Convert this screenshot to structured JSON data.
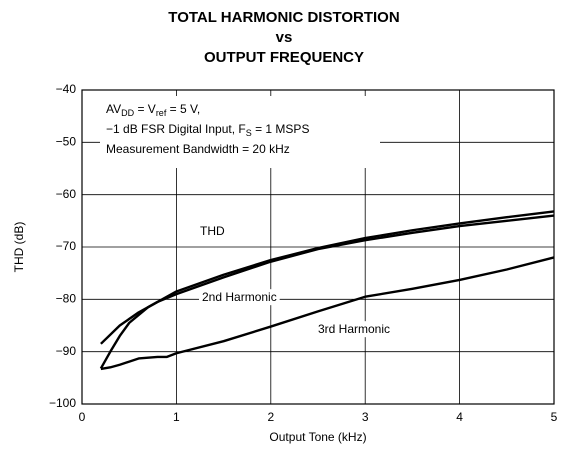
{
  "chart_data": {
    "type": "line",
    "title": [
      "TOTAL HARMONIC DISTORTION",
      "vs",
      "OUTPUT FREQUENCY"
    ],
    "x_label": "Output Tone (kHz)",
    "y_label": "THD (dB)",
    "annotation": [
      [
        "AV",
        "DD",
        " = V",
        "ref",
        " = 5 V,"
      ],
      [
        "−1 dB FSR Digital Input, F",
        "S",
        " = 1 MSPS"
      ],
      [
        "Measurement Bandwidth = 20 kHz"
      ]
    ],
    "xlim": [
      0,
      5
    ],
    "xticks": [
      0,
      1,
      2,
      3,
      4,
      5
    ],
    "ylim": [
      -100,
      -40
    ],
    "yticks": [
      {
        "value": -100,
        "label": "−100"
      },
      {
        "value": -90,
        "label": "−90"
      },
      {
        "value": -80,
        "label": "−80"
      },
      {
        "value": -70,
        "label": "−70"
      },
      {
        "value": -60,
        "label": "−60"
      },
      {
        "value": -50,
        "label": "−50"
      },
      {
        "value": -40,
        "label": "−40"
      }
    ],
    "grid": true,
    "series": [
      {
        "name": "THD",
        "color": "#000000",
        "x": [
          0.2,
          0.3,
          0.4,
          0.5,
          0.7,
          1,
          1.5,
          2,
          2.5,
          3,
          3.5,
          4,
          4.5,
          5
        ],
        "values": [
          -93.2,
          -90,
          -87,
          -84.5,
          -81.5,
          -78.5,
          -75.3,
          -72.5,
          -70.2,
          -68.3,
          -66.8,
          -65.5,
          -64.3,
          -63.2
        ]
      },
      {
        "name": "2nd Harmonic",
        "color": "#000000",
        "x": [
          0.2,
          0.4,
          0.6,
          0.8,
          1,
          1.5,
          2,
          2.5,
          3,
          3.5,
          4,
          4.5,
          5
        ],
        "values": [
          -88.5,
          -85,
          -82.5,
          -80.5,
          -79,
          -75.8,
          -72.8,
          -70.4,
          -68.7,
          -67.3,
          -66,
          -65,
          -64
        ]
      },
      {
        "name": "3rd Harmonic",
        "color": "#000000",
        "x": [
          0.2,
          0.3,
          0.4,
          0.6,
          0.8,
          0.9,
          1,
          1.5,
          2,
          2.5,
          3,
          3.5,
          4,
          4.5,
          5
        ],
        "values": [
          -93.3,
          -93,
          -92.5,
          -91.3,
          -91,
          -91,
          -90.3,
          -88,
          -85.2,
          -82.3,
          -79.5,
          -78,
          -76.3,
          -74.3,
          -72
        ]
      }
    ]
  }
}
